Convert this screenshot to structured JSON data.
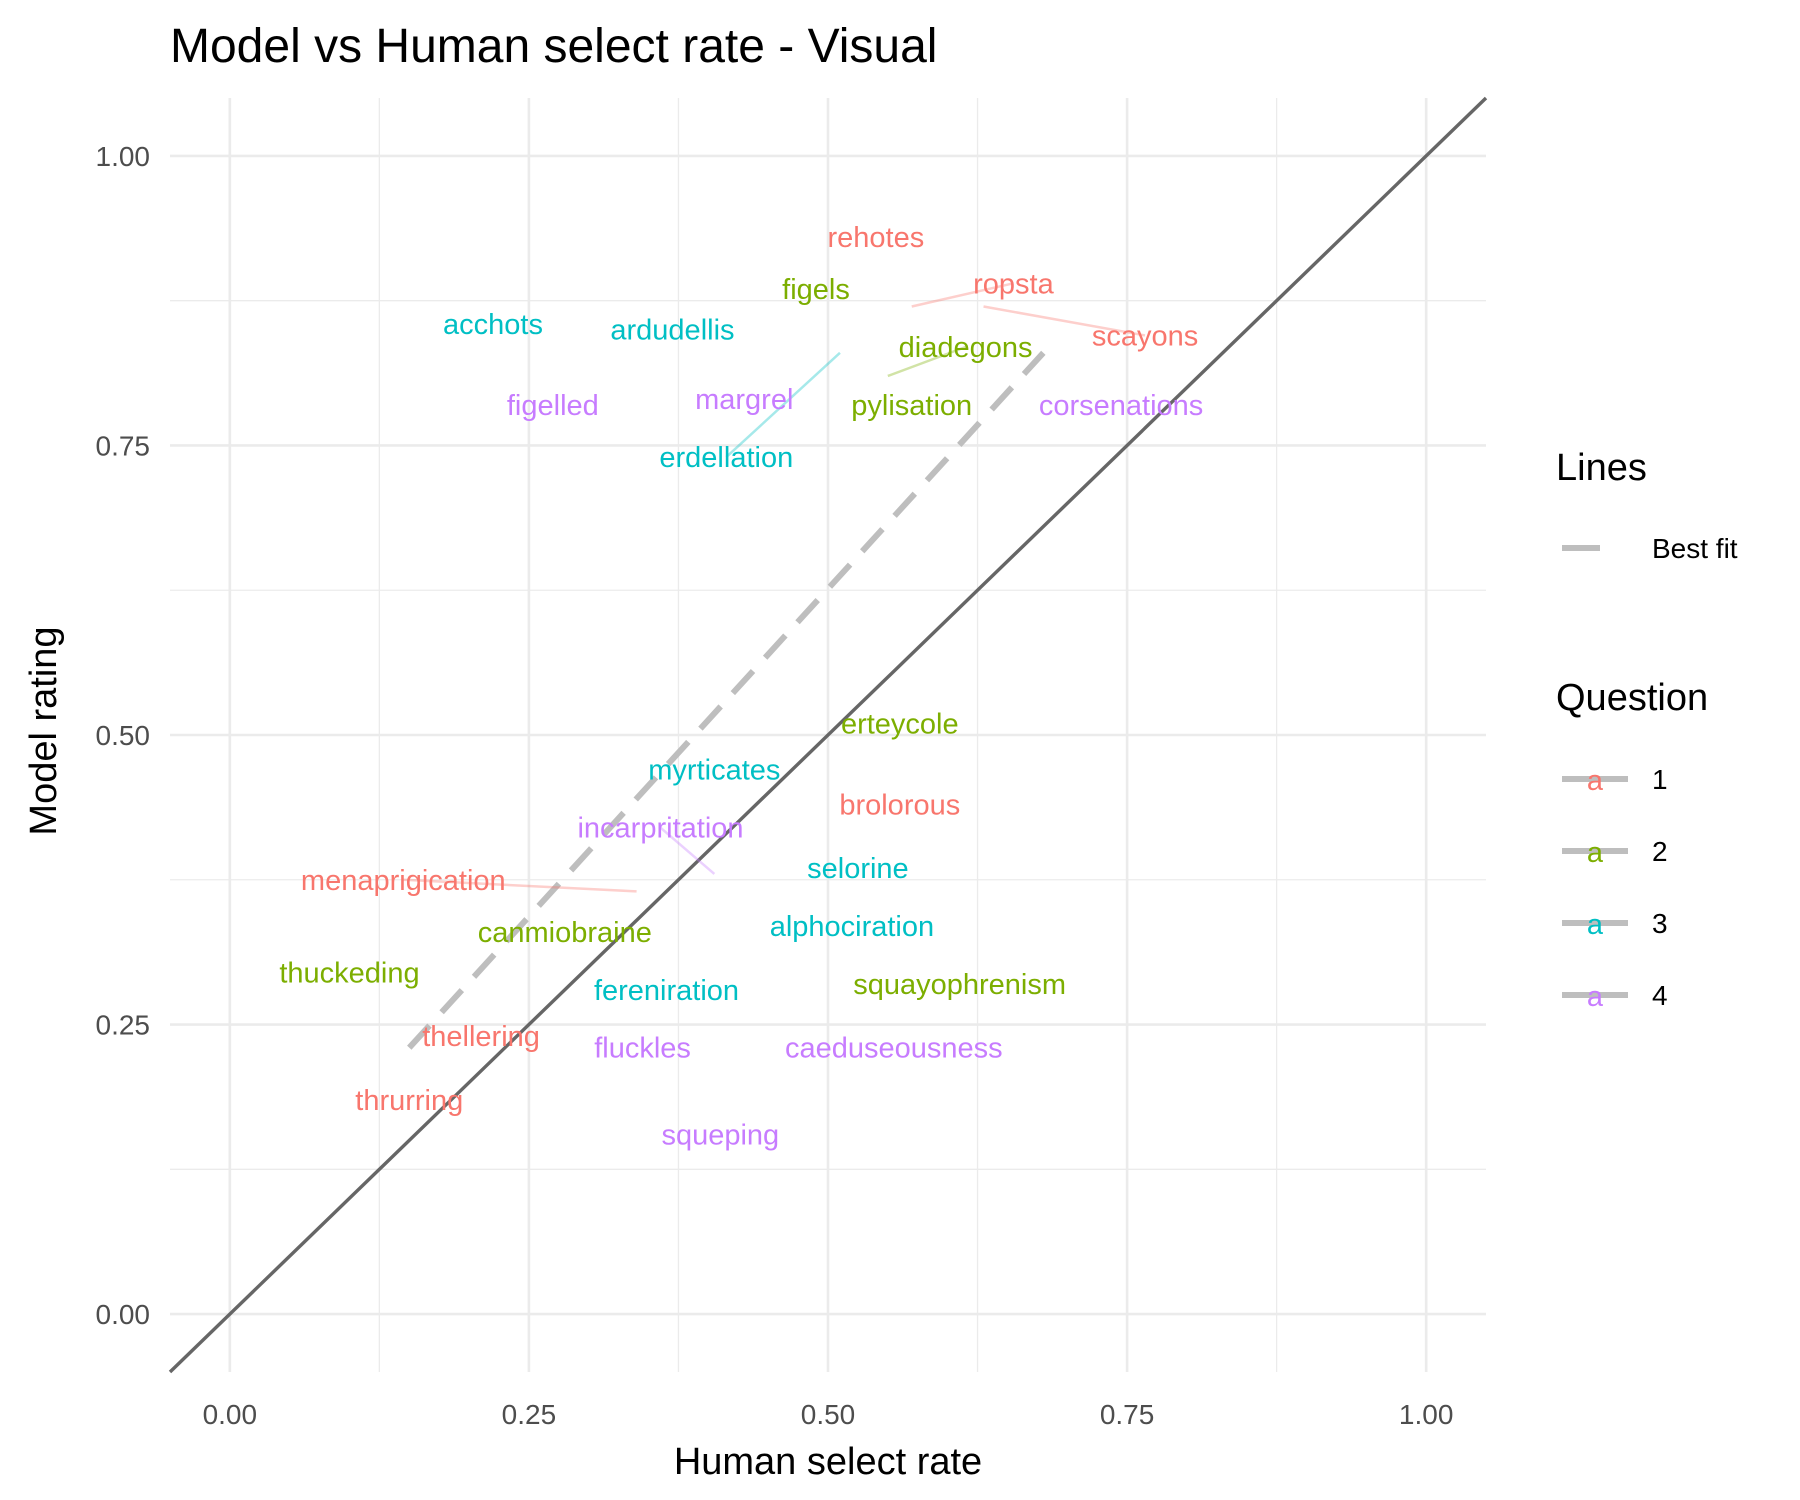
{
  "chart_data": {
    "type": "scatter",
    "title": "Model vs Human select rate - Visual",
    "xlabel": "Human select rate",
    "ylabel": "Model rating",
    "xlim": [
      -0.05,
      1.05
    ],
    "ylim": [
      -0.05,
      1.05
    ],
    "x_ticks": [
      {
        "value": 0.0,
        "label": "0.00"
      },
      {
        "value": 0.25,
        "label": "0.25"
      },
      {
        "value": 0.5,
        "label": "0.50"
      },
      {
        "value": 0.75,
        "label": "0.75"
      },
      {
        "value": 1.0,
        "label": "1.00"
      }
    ],
    "y_ticks": [
      {
        "value": 0.0,
        "label": "0.00"
      },
      {
        "value": 0.25,
        "label": "0.25"
      },
      {
        "value": 0.5,
        "label": "0.50"
      },
      {
        "value": 0.75,
        "label": "0.75"
      },
      {
        "value": 1.0,
        "label": "1.00"
      }
    ],
    "minor_breaks": [
      0.125,
      0.375,
      0.625,
      0.875
    ],
    "identity_line": {
      "from": [
        -0.05,
        -0.05
      ],
      "to": [
        1.05,
        1.05
      ],
      "color": "#666666"
    },
    "best_fit_line": {
      "from": [
        0.15,
        0.23
      ],
      "to": [
        0.68,
        0.83
      ],
      "color": "#bebebe"
    },
    "colors": {
      "1": "#F8766D",
      "2": "#7CAE00",
      "3": "#00BFC4",
      "4": "#C77CFF"
    },
    "points": [
      {
        "label": "rehotes",
        "question": "1",
        "x": 0.54,
        "y": 0.93
      },
      {
        "label": "ropsta",
        "question": "1",
        "x": 0.655,
        "y": 0.89,
        "leader": [
          0.57,
          0.87
        ]
      },
      {
        "label": "scayons",
        "question": "1",
        "x": 0.765,
        "y": 0.845,
        "leader": [
          0.63,
          0.87
        ]
      },
      {
        "label": "figels",
        "question": "2",
        "x": 0.49,
        "y": 0.885
      },
      {
        "label": "diadegons",
        "question": "2",
        "x": 0.615,
        "y": 0.835,
        "leader": [
          0.55,
          0.81
        ]
      },
      {
        "label": "pylisation",
        "question": "2",
        "x": 0.57,
        "y": 0.785
      },
      {
        "label": "acchots",
        "question": "3",
        "x": 0.22,
        "y": 0.855
      },
      {
        "label": "ardudellis",
        "question": "3",
        "x": 0.37,
        "y": 0.85
      },
      {
        "label": "erdellation",
        "question": "3",
        "x": 0.415,
        "y": 0.74,
        "leader": [
          0.51,
          0.83
        ]
      },
      {
        "label": "figelled",
        "question": "4",
        "x": 0.27,
        "y": 0.785
      },
      {
        "label": "margrel",
        "question": "4",
        "x": 0.43,
        "y": 0.79
      },
      {
        "label": "corsenations",
        "question": "4",
        "x": 0.745,
        "y": 0.785
      },
      {
        "label": "erteycole",
        "question": "2",
        "x": 0.56,
        "y": 0.51
      },
      {
        "label": "myrticates",
        "question": "3",
        "x": 0.405,
        "y": 0.47
      },
      {
        "label": "brolorous",
        "question": "1",
        "x": 0.56,
        "y": 0.44
      },
      {
        "label": "incarpritation",
        "question": "4",
        "x": 0.36,
        "y": 0.42,
        "leader": [
          0.405,
          0.38
        ]
      },
      {
        "label": "selorine",
        "question": "3",
        "x": 0.525,
        "y": 0.385
      },
      {
        "label": "menaprigication",
        "question": "1",
        "x": 0.145,
        "y": 0.375,
        "leader": [
          0.34,
          0.365
        ]
      },
      {
        "label": "alphociration",
        "question": "3",
        "x": 0.52,
        "y": 0.335
      },
      {
        "label": "canmiobraine",
        "question": "2",
        "x": 0.28,
        "y": 0.33
      },
      {
        "label": "thuckeding",
        "question": "2",
        "x": 0.1,
        "y": 0.295
      },
      {
        "label": "squayophrenism",
        "question": "2",
        "x": 0.61,
        "y": 0.285
      },
      {
        "label": "fereniration",
        "question": "3",
        "x": 0.365,
        "y": 0.28
      },
      {
        "label": "thellering",
        "question": "1",
        "x": 0.21,
        "y": 0.24
      },
      {
        "label": "fluckles",
        "question": "4",
        "x": 0.345,
        "y": 0.23
      },
      {
        "label": "caeduseousness",
        "question": "4",
        "x": 0.555,
        "y": 0.23
      },
      {
        "label": "thrurring",
        "question": "1",
        "x": 0.15,
        "y": 0.185
      },
      {
        "label": "squeping",
        "question": "4",
        "x": 0.41,
        "y": 0.155
      }
    ],
    "legend": {
      "lines_title": "Lines",
      "lines_items": [
        {
          "label": "Best fit"
        }
      ],
      "question_title": "Question",
      "question_items": [
        {
          "label": "1",
          "key": "1",
          "glyph": "a"
        },
        {
          "label": "2",
          "key": "2",
          "glyph": "a"
        },
        {
          "label": "3",
          "key": "3",
          "glyph": "a"
        },
        {
          "label": "4",
          "key": "4",
          "glyph": "a"
        }
      ]
    }
  }
}
